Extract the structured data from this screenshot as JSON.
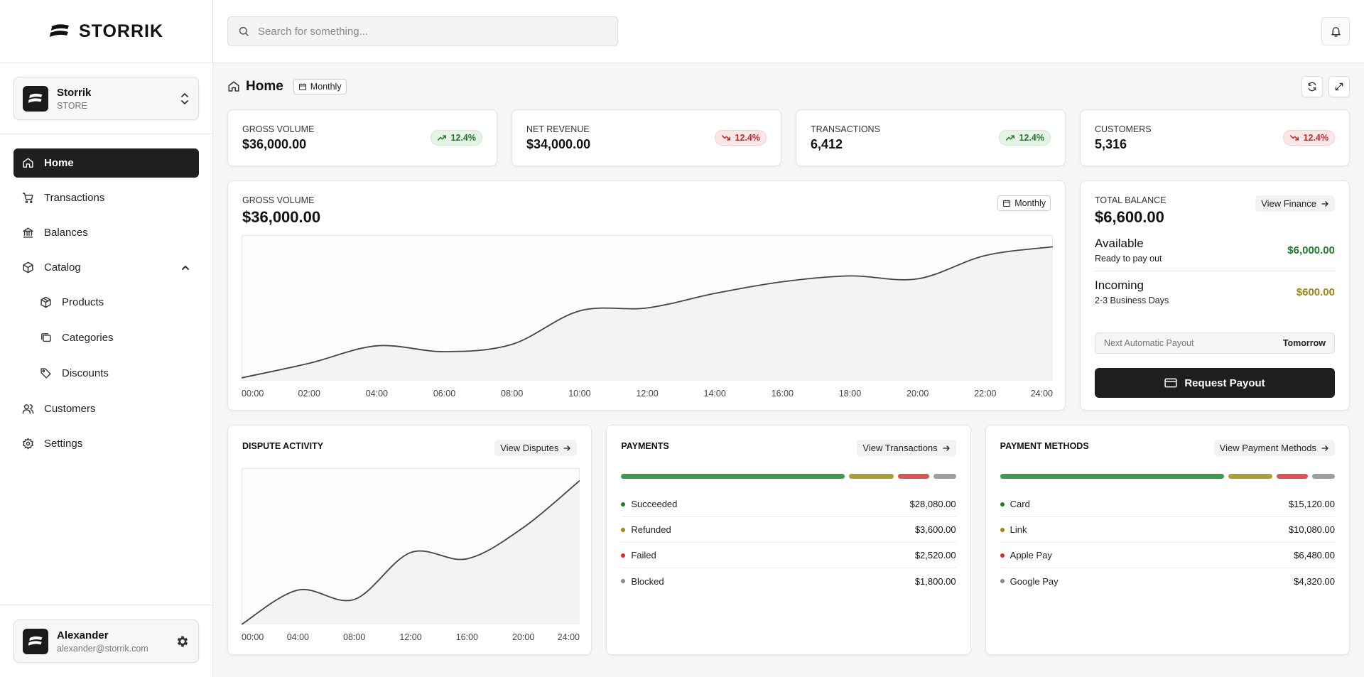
{
  "brand": {
    "name": "STORRIK"
  },
  "store": {
    "name": "Storrik",
    "type": "STORE"
  },
  "nav": {
    "home": "Home",
    "transactions": "Transactions",
    "balances": "Balances",
    "catalog": "Catalog",
    "products": "Products",
    "categories": "Categories",
    "discounts": "Discounts",
    "customers": "Customers",
    "settings": "Settings"
  },
  "user": {
    "name": "Alexander",
    "email": "alexander@storrik.com"
  },
  "search": {
    "placeholder": "Search for something..."
  },
  "page": {
    "title": "Home",
    "period": "Monthly"
  },
  "kpis": [
    {
      "label": "GROSS VOLUME",
      "value": "$36,000.00",
      "trend": "12.4%",
      "direction": "up"
    },
    {
      "label": "NET REVENUE",
      "value": "$34,000.00",
      "trend": "12.4%",
      "direction": "down"
    },
    {
      "label": "TRANSACTIONS",
      "value": "6,412",
      "trend": "12.4%",
      "direction": "up"
    },
    {
      "label": "CUSTOMERS",
      "value": "5,316",
      "trend": "12.4%",
      "direction": "down"
    }
  ],
  "gross": {
    "label": "GROSS VOLUME",
    "value": "$36,000.00",
    "period": "Monthly"
  },
  "balance": {
    "label": "TOTAL BALANCE",
    "value": "$6,600.00",
    "view_link": "View Finance",
    "available": {
      "title": "Available",
      "sub": "Ready to pay out",
      "amount": "$6,000.00",
      "color": "#1f7a2c"
    },
    "incoming": {
      "title": "Incoming",
      "sub": "2-3 Business Days",
      "amount": "$600.00",
      "color": "#9a8419"
    },
    "payout_label": "Next Automatic Payout",
    "payout_when": "Tomorrow",
    "request_button": "Request Payout"
  },
  "dispute": {
    "title": "DISPUTE ACTIVITY",
    "view_link": "View Disputes"
  },
  "payments": {
    "title": "PAYMENTS",
    "view_link": "View Transactions",
    "items": [
      {
        "label": "Succeeded",
        "value": "$28,080.00",
        "color": "#3f9a4b"
      },
      {
        "label": "Refunded",
        "value": "$3,600.00",
        "color": "#a9a035"
      },
      {
        "label": "Failed",
        "value": "$2,520.00",
        "color": "#e05252"
      },
      {
        "label": "Blocked",
        "value": "$1,800.00",
        "color": "#9e9e9e"
      }
    ]
  },
  "methods": {
    "title": "PAYMENT METHODS",
    "view_link": "View Payment Methods",
    "items": [
      {
        "label": "Card",
        "value": "$15,120.00",
        "color": "#3f9a4b"
      },
      {
        "label": "Link",
        "value": "$10,080.00",
        "color": "#a9a035"
      },
      {
        "label": "Apple Pay",
        "value": "$6,480.00",
        "color": "#e05252"
      },
      {
        "label": "Google Pay",
        "value": "$4,320.00",
        "color": "#9e9e9e"
      }
    ]
  },
  "chart_data": [
    {
      "type": "area",
      "title": "GROSS VOLUME",
      "x": [
        "00:00",
        "02:00",
        "04:00",
        "06:00",
        "08:00",
        "10:00",
        "12:00",
        "14:00",
        "16:00",
        "18:00",
        "20:00",
        "22:00",
        "24:00"
      ],
      "y": [
        2,
        12,
        24,
        20,
        25,
        48,
        50,
        60,
        68,
        72,
        70,
        86,
        92
      ],
      "ylim": [
        0,
        100
      ],
      "grid": false,
      "series_color": "#444444"
    },
    {
      "type": "area",
      "title": "DISPUTE ACTIVITY",
      "x": [
        "00:00",
        "04:00",
        "08:00",
        "12:00",
        "16:00",
        "20:00",
        "24:00"
      ],
      "y": [
        0,
        22,
        16,
        46,
        42,
        62,
        92
      ],
      "ylim": [
        0,
        100
      ],
      "grid": false,
      "series_color": "#444444"
    }
  ]
}
